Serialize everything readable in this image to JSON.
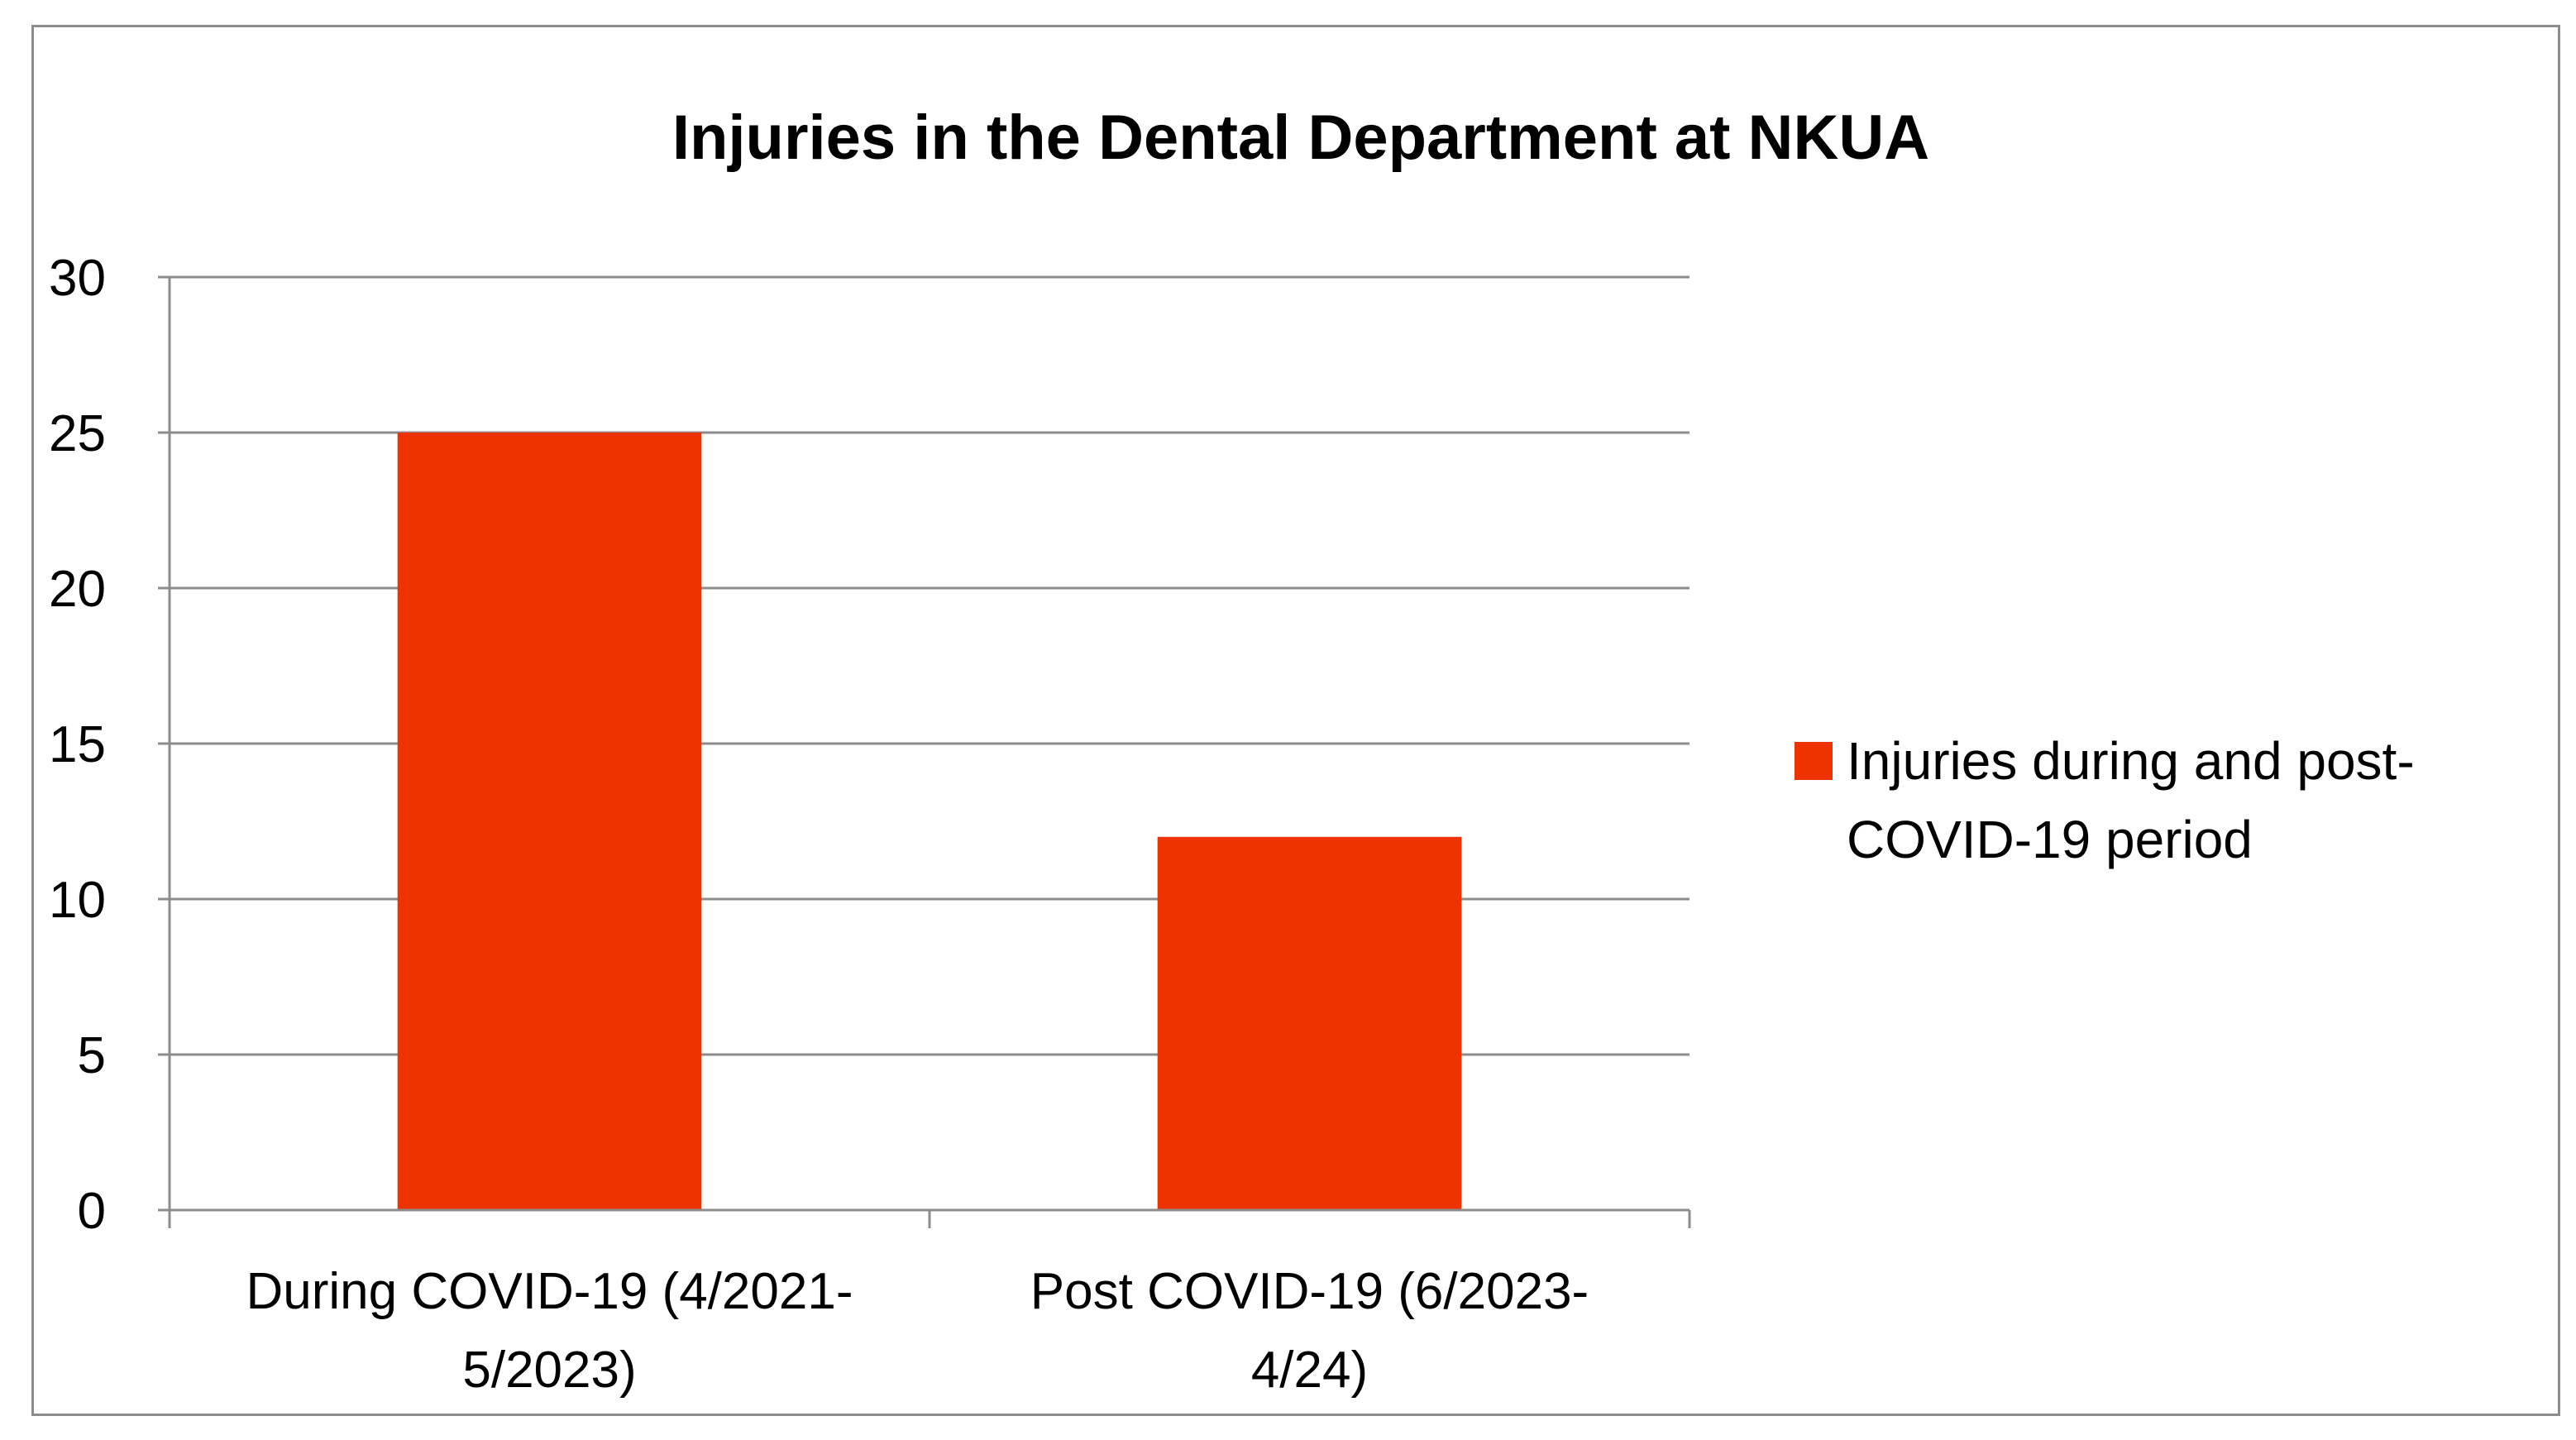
{
  "chart_data": {
    "type": "bar",
    "title": "Injuries in the Dental Department at NKUA",
    "xlabel": "",
    "ylabel": "",
    "categories": [
      [
        "During COVID-19 (4/2021-",
        "5/2023)"
      ],
      [
        "Post COVID-19 (6/2023-",
        "4/24)"
      ]
    ],
    "series": [
      {
        "name": "Injuries during and post-COVID-19 period",
        "name_lines": [
          "Injuries during and post-",
          "COVID-19 period"
        ],
        "values": [
          25,
          12
        ],
        "color": "#ee3300"
      }
    ],
    "ylim": [
      0,
      30
    ],
    "yticks": [
      0,
      5,
      10,
      15,
      20,
      25,
      30
    ],
    "grid": true,
    "legend_position": "right"
  }
}
